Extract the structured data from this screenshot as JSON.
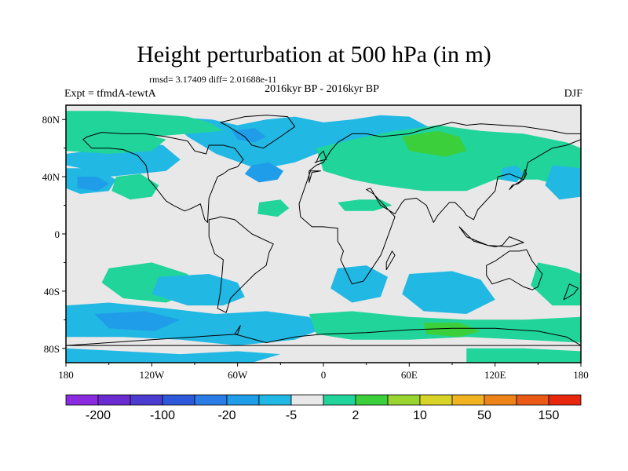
{
  "title": "Height perturbation at 500 hPa (in m)",
  "stats": "rmsd= 3.17409 diff= 2.01688e-11",
  "left_label": "Expt = tfmdA-tewtA",
  "center_label": "2016kyr BP - 2016kyr BP",
  "right_label": "DJF",
  "map": {
    "projection": "cylindrical-equidistant",
    "lon_range": [
      -180,
      180
    ],
    "lat_range": [
      -90,
      90
    ],
    "lon_ticks": [
      {
        "value": -180,
        "label": "180"
      },
      {
        "value": -120,
        "label": "120W"
      },
      {
        "value": -60,
        "label": "60W"
      },
      {
        "value": 0,
        "label": "0"
      },
      {
        "value": 60,
        "label": "60E"
      },
      {
        "value": 120,
        "label": "120E"
      },
      {
        "value": 180,
        "label": "180"
      }
    ],
    "lat_ticks": [
      {
        "value": 80,
        "label": "80N"
      },
      {
        "value": 40,
        "label": "40N"
      },
      {
        "value": 0,
        "label": "0"
      },
      {
        "value": -40,
        "label": "40S"
      },
      {
        "value": -80,
        "label": "80S"
      }
    ],
    "background_color": "#e8e8e8"
  },
  "colorbar": {
    "colors": [
      "#8a2be2",
      "#6a2cd0",
      "#4b3ccf",
      "#2e58dc",
      "#2a7ce6",
      "#1f9de8",
      "#22b8e4",
      "#e8e8e8",
      "#21d49a",
      "#3ccf3c",
      "#9ad430",
      "#d7d427",
      "#f1b321",
      "#ee8419",
      "#eb5a14",
      "#e8280e"
    ],
    "labels": [
      {
        "boundary": 1,
        "text": "-200"
      },
      {
        "boundary": 3,
        "text": "-100"
      },
      {
        "boundary": 5,
        "text": "-20"
      },
      {
        "boundary": 7,
        "text": "-5"
      },
      {
        "boundary": 9,
        "text": "2"
      },
      {
        "boundary": 11,
        "text": "10"
      },
      {
        "boundary": 13,
        "text": "50"
      },
      {
        "boundary": 15,
        "text": "150"
      }
    ]
  },
  "field_regions": [
    {
      "name": "n-arctic-atlantic-blue",
      "level": "neg-small",
      "lon": [
        -110,
        -78,
        -60,
        -40,
        -20,
        0,
        20,
        40,
        60,
        75,
        60,
        30,
        0,
        -20,
        -45,
        -75,
        -95
      ],
      "lat": [
        82,
        80,
        76,
        80,
        82,
        78,
        80,
        83,
        82,
        74,
        60,
        62,
        58,
        50,
        45,
        56,
        68
      ]
    },
    {
      "name": "n-atlantic-core",
      "level": "neg-mid",
      "lon": [
        -50,
        -38,
        -28,
        -32,
        -45,
        -55
      ],
      "lat": [
        48,
        50,
        44,
        38,
        36,
        42
      ]
    },
    {
      "name": "greenland-core",
      "level": "neg-mid",
      "lon": [
        -64,
        -48,
        -40,
        -48,
        -60
      ],
      "lat": [
        72,
        74,
        68,
        64,
        66
      ]
    },
    {
      "name": "n-canada-blue",
      "level": "neg-small",
      "lon": [
        -180,
        -150,
        -130,
        -112,
        -100,
        -110,
        -130,
        -150,
        -165,
        -180
      ],
      "lat": [
        56,
        60,
        65,
        62,
        52,
        44,
        42,
        40,
        45,
        48
      ]
    },
    {
      "name": "n-pacific-blue",
      "level": "neg-small",
      "lon": [
        -180,
        -160,
        -145,
        -150,
        -170,
        -180
      ],
      "lat": [
        46,
        46,
        38,
        30,
        28,
        32
      ]
    },
    {
      "name": "n-pacific-core",
      "level": "neg-mid",
      "lon": [
        -172,
        -158,
        -150,
        -158,
        -172
      ],
      "lat": [
        40,
        40,
        35,
        30,
        32
      ]
    },
    {
      "name": "arctic-green",
      "level": "pos-small",
      "lon": [
        -180,
        -150,
        -120,
        -95,
        -80,
        -70,
        -95,
        -120,
        -150,
        -180
      ],
      "lat": [
        86,
        86,
        84,
        82,
        78,
        72,
        70,
        68,
        64,
        64
      ]
    },
    {
      "name": "arctic-band-green",
      "level": "pos-small",
      "lon": [
        -180,
        -150,
        -125,
        -110,
        -120,
        -150,
        -180
      ],
      "lat": [
        66,
        68,
        70,
        66,
        58,
        56,
        58
      ]
    },
    {
      "name": "ne-pacific-green",
      "level": "pos-small",
      "lon": [
        -145,
        -128,
        -115,
        -120,
        -135,
        -148
      ],
      "lat": [
        40,
        42,
        34,
        26,
        24,
        30
      ]
    },
    {
      "name": "mid-atlantic-green",
      "level": "pos-small",
      "lon": [
        -45,
        -30,
        -24,
        -32,
        -46
      ],
      "lat": [
        22,
        24,
        18,
        12,
        14
      ]
    },
    {
      "name": "eurasia-green",
      "level": "pos-small",
      "lon": [
        -5,
        20,
        50,
        80,
        110,
        140,
        170,
        180,
        180,
        150,
        120,
        100,
        70,
        40,
        20,
        0
      ],
      "lat": [
        60,
        66,
        72,
        76,
        72,
        70,
        64,
        60,
        30,
        38,
        38,
        30,
        30,
        34,
        38,
        44
      ]
    },
    {
      "name": "siberia-core",
      "level": "pos-mid",
      "lon": [
        55,
        80,
        95,
        100,
        85,
        60
      ],
      "lat": [
        68,
        72,
        68,
        58,
        54,
        58
      ]
    },
    {
      "name": "n-africa-green",
      "level": "pos-small",
      "lon": [
        10,
        25,
        40,
        48,
        35,
        15
      ],
      "lat": [
        22,
        24,
        24,
        20,
        16,
        16
      ]
    },
    {
      "name": "e-asia-blue",
      "level": "neg-small",
      "lon": [
        125,
        135,
        140,
        135,
        124
      ],
      "lat": [
        46,
        48,
        42,
        36,
        38
      ]
    },
    {
      "name": "nw-pacific-blue",
      "level": "neg-small",
      "lon": [
        160,
        180,
        180,
        165,
        155
      ],
      "lat": [
        48,
        46,
        26,
        24,
        34
      ]
    },
    {
      "name": "s-pacific-green",
      "level": "pos-small",
      "lon": [
        -150,
        -120,
        -95,
        -90,
        -110,
        -140,
        -155
      ],
      "lat": [
        -24,
        -20,
        -28,
        -40,
        -48,
        -45,
        -34
      ]
    },
    {
      "name": "se-pacific-blue",
      "level": "neg-small",
      "lon": [
        -115,
        -80,
        -60,
        -55,
        -70,
        -95,
        -120
      ],
      "lat": [
        -30,
        -28,
        -34,
        -44,
        -50,
        -50,
        -42
      ]
    },
    {
      "name": "s-atlantic-blue",
      "level": "neg-small",
      "lon": [
        10,
        30,
        45,
        40,
        20,
        5
      ],
      "lat": [
        -24,
        -22,
        -30,
        -44,
        -48,
        -38
      ]
    },
    {
      "name": "indian-ocean-blue",
      "level": "neg-small",
      "lon": [
        60,
        90,
        110,
        120,
        100,
        70,
        55
      ],
      "lat": [
        -28,
        -26,
        -32,
        -46,
        -56,
        -54,
        -42
      ]
    },
    {
      "name": "sw-pacific-green",
      "level": "pos-small",
      "lon": [
        150,
        170,
        180,
        180,
        160,
        145
      ],
      "lat": [
        -20,
        -24,
        -28,
        -50,
        -50,
        -36
      ]
    },
    {
      "name": "s-hemi-band-blue",
      "level": "neg-small",
      "lon": [
        -180,
        -150,
        -110,
        -75,
        -40,
        -10,
        0,
        -20,
        -60,
        -100,
        -140,
        -180
      ],
      "lat": [
        -50,
        -48,
        -52,
        -56,
        -54,
        -58,
        -66,
        -74,
        -78,
        -74,
        -72,
        -72
      ]
    },
    {
      "name": "s-hemi-band-core",
      "level": "neg-mid",
      "lon": [
        -160,
        -125,
        -100,
        -118,
        -150
      ],
      "lat": [
        -56,
        -54,
        -60,
        -68,
        -66
      ]
    },
    {
      "name": "s-ocean-green",
      "level": "pos-small",
      "lon": [
        -10,
        20,
        60,
        100,
        140,
        180,
        180,
        140,
        100,
        60,
        20,
        -5
      ],
      "lat": [
        -56,
        -54,
        -58,
        -60,
        -60,
        -58,
        -76,
        -74,
        -72,
        -74,
        -74,
        -70
      ]
    },
    {
      "name": "s-ocean-core",
      "level": "pos-mid",
      "lon": [
        70,
        95,
        110,
        95,
        72
      ],
      "lat": [
        -62,
        -62,
        -68,
        -72,
        -70
      ]
    },
    {
      "name": "antarctic-blue",
      "level": "neg-small",
      "lon": [
        -180,
        -140,
        -100,
        -60,
        -30,
        -50,
        -90,
        -140,
        -180
      ],
      "lat": [
        -80,
        -82,
        -84,
        -82,
        -84,
        -90,
        -90,
        -90,
        -90
      ]
    },
    {
      "name": "antarctic-green",
      "level": "pos-small",
      "lon": [
        100,
        140,
        180,
        180,
        140,
        100
      ],
      "lat": [
        -80,
        -80,
        -82,
        -90,
        -90,
        -90
      ]
    }
  ],
  "coastlines": [
    {
      "name": "north-america",
      "lon": [
        -168,
        -162,
        -150,
        -140,
        -130,
        -124,
        -122,
        -117,
        -110,
        -105,
        -97,
        -92,
        -86,
        -83,
        -81,
        -80,
        -76,
        -74,
        -70,
        -66,
        -60,
        -56,
        -62,
        -70,
        -80,
        -82,
        -90,
        -95,
        -110,
        -125,
        -140,
        -155,
        -165,
        -168
      ],
      "lat": [
        66,
        60,
        60,
        59,
        55,
        48,
        38,
        32,
        23,
        20,
        16,
        18,
        21,
        10,
        8,
        25,
        35,
        40,
        42,
        45,
        47,
        52,
        60,
        62,
        62,
        56,
        58,
        65,
        68,
        70,
        70,
        71,
        68,
        66
      ]
    },
    {
      "name": "greenland",
      "lon": [
        -72,
        -55,
        -40,
        -25,
        -20,
        -30,
        -42,
        -50,
        -55,
        -68,
        -72
      ],
      "lat": [
        78,
        82,
        83,
        82,
        75,
        68,
        60,
        62,
        68,
        76,
        78
      ]
    },
    {
      "name": "south-america",
      "lon": [
        -80,
        -75,
        -72,
        -62,
        -50,
        -35,
        -38,
        -40,
        -48,
        -58,
        -65,
        -68,
        -74,
        -72,
        -71,
        -70,
        -76,
        -80
      ],
      "lat": [
        10,
        11,
        12,
        10,
        0,
        -7,
        -13,
        -22,
        -28,
        -38,
        -45,
        -55,
        -52,
        -40,
        -30,
        -18,
        -14,
        -2
      ]
    },
    {
      "name": "eurasia-africa",
      "lon": [
        -10,
        -8,
        -2,
        -9,
        -17,
        -16,
        -8,
        0,
        10,
        10,
        14,
        12,
        20,
        28,
        30,
        40,
        42,
        50,
        35,
        30,
        33,
        40,
        50,
        55,
        57,
        65,
        72,
        77,
        80,
        88,
        92,
        98,
        100,
        105,
        108,
        120,
        122,
        130,
        140,
        143,
        160,
        170,
        180,
        180,
        170,
        160,
        140,
        110,
        100,
        90,
        70,
        60,
        40,
        30,
        20,
        10,
        5,
        0,
        -5,
        -10
      ],
      "lat": [
        36,
        43,
        44,
        44,
        21,
        12,
        5,
        5,
        4,
        -5,
        -12,
        -18,
        -35,
        -33,
        -30,
        -15,
        -10,
        12,
        28,
        31,
        32,
        20,
        14,
        22,
        24,
        25,
        20,
        8,
        13,
        22,
        22,
        16,
        13,
        10,
        17,
        30,
        40,
        42,
        38,
        50,
        60,
        62,
        66,
        70,
        70,
        72,
        75,
        77,
        76,
        78,
        73,
        70,
        68,
        70,
        70,
        64,
        58,
        50,
        48,
        44
      ]
    },
    {
      "name": "australia",
      "lon": [
        114,
        120,
        130,
        137,
        142,
        146,
        153,
        150,
        146,
        140,
        135,
        130,
        118,
        114
      ],
      "lat": [
        -22,
        -19,
        -12,
        -12,
        -11,
        -19,
        -28,
        -37,
        -39,
        -37,
        -34,
        -31,
        -35,
        -29
      ]
    },
    {
      "name": "antarctica",
      "lon": [
        -180,
        -150,
        -120,
        -90,
        -60,
        -58,
        -62,
        -40,
        -20,
        0,
        30,
        60,
        90,
        120,
        150,
        170,
        180
      ],
      "lat": [
        -78,
        -76,
        -74,
        -72,
        -70,
        -64,
        -70,
        -76,
        -72,
        -70,
        -69,
        -67,
        -66,
        -66,
        -68,
        -72,
        -78
      ]
    },
    {
      "name": "uk",
      "lon": [
        -5,
        -3,
        0,
        2,
        -3,
        -6,
        -5
      ],
      "lat": [
        50,
        55,
        58,
        52,
        51,
        50,
        50
      ]
    },
    {
      "name": "japan",
      "lon": [
        130,
        132,
        136,
        140,
        142,
        141,
        138,
        133,
        130
      ],
      "lat": [
        31,
        34,
        35,
        38,
        42,
        45,
        37,
        34,
        31
      ]
    },
    {
      "name": "madagascar",
      "lon": [
        44,
        50,
        48,
        44,
        44
      ],
      "lat": [
        -25,
        -15,
        -12,
        -20,
        -25
      ]
    },
    {
      "name": "new-zealand",
      "lon": [
        172,
        178,
        175,
        168,
        172
      ],
      "lat": [
        -35,
        -38,
        -42,
        -46,
        -35
      ]
    },
    {
      "name": "indonesia",
      "lon": [
        95,
        105,
        115,
        120,
        125,
        130,
        140,
        130,
        115,
        100,
        95
      ],
      "lat": [
        5,
        -5,
        -8,
        -9,
        -8,
        -2,
        -6,
        -9,
        -8,
        -2,
        5
      ]
    }
  ]
}
